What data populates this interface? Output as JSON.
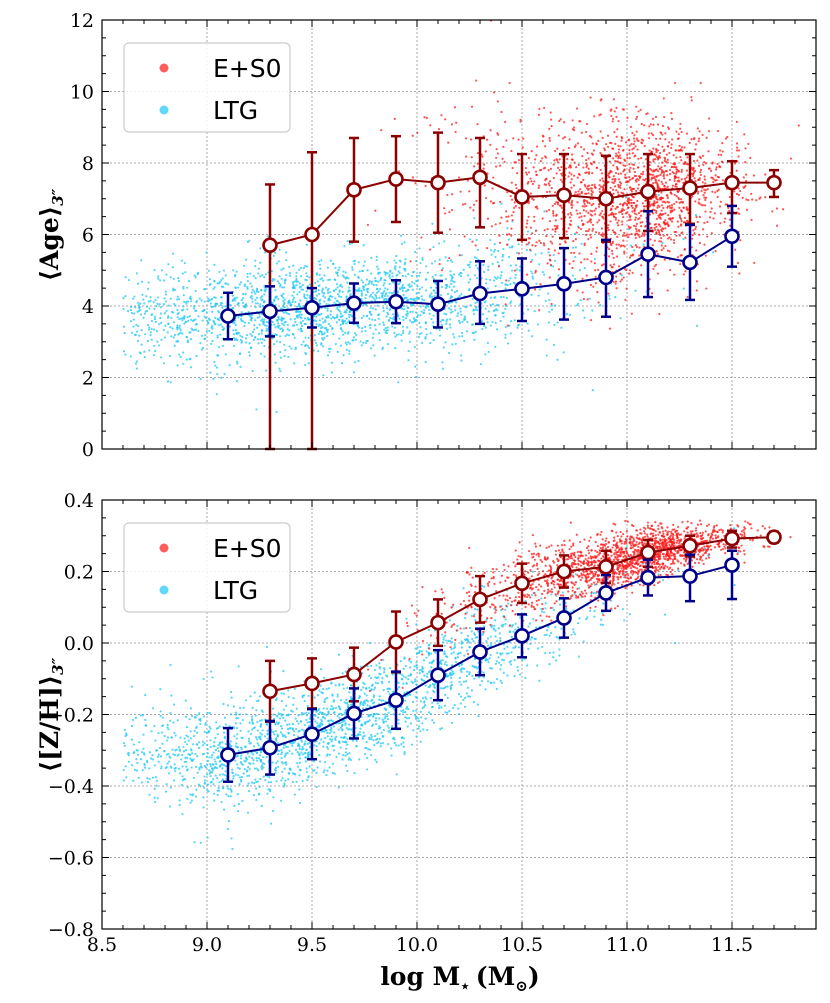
{
  "chart_data": [
    {
      "type": "scatter",
      "panel": "top",
      "ylabel": "⟨Age⟩",
      "ylabel_sub": "3″",
      "xlabel": "",
      "xlim": [
        8.5,
        11.9
      ],
      "ylim": [
        0,
        12
      ],
      "xticks": [
        "8.5",
        "9.0",
        "9.5",
        "10.0",
        "10.5",
        "11.0",
        "11.5"
      ],
      "xtick_values": [
        8.5,
        9.0,
        9.5,
        10.0,
        10.5,
        11.0,
        11.5
      ],
      "yticks": [
        "0",
        "2",
        "4",
        "6",
        "8",
        "10",
        "12"
      ],
      "ytick_values": [
        0,
        2,
        4,
        6,
        8,
        10,
        12
      ],
      "grid": true,
      "legend_position": "top-left",
      "series": [
        {
          "name": "E+S0",
          "color": "#8b0000",
          "scatter_color": "#ff1a1a",
          "x": [
            9.3,
            9.5,
            9.7,
            9.9,
            10.1,
            10.3,
            10.5,
            10.7,
            10.9,
            11.1,
            11.3,
            11.5,
            11.7
          ],
          "y": [
            5.7,
            6.0,
            7.25,
            7.55,
            7.45,
            7.6,
            7.05,
            7.1,
            7.0,
            7.2,
            7.3,
            7.45,
            7.45
          ],
          "err_low": [
            5.7,
            6.0,
            1.45,
            1.2,
            1.4,
            1.4,
            1.2,
            1.2,
            1.2,
            1.1,
            1.0,
            0.85,
            0.4
          ],
          "err_high": [
            1.7,
            2.3,
            1.45,
            1.2,
            1.4,
            1.1,
            1.2,
            1.15,
            1.2,
            1.05,
            0.95,
            0.6,
            0.35
          ]
        },
        {
          "name": "LTG",
          "color": "#00008b",
          "scatter_color": "#1ec8f5",
          "x": [
            9.1,
            9.3,
            9.5,
            9.7,
            9.9,
            10.1,
            10.3,
            10.5,
            10.7,
            10.9,
            11.1,
            11.3,
            11.5
          ],
          "y": [
            3.72,
            3.85,
            3.95,
            4.08,
            4.12,
            4.05,
            4.35,
            4.48,
            4.62,
            4.8,
            5.45,
            5.22,
            5.95
          ],
          "err_low": [
            0.65,
            0.7,
            0.55,
            0.55,
            0.6,
            0.65,
            0.85,
            0.9,
            1.0,
            1.1,
            1.2,
            1.05,
            0.85
          ],
          "err_high": [
            0.65,
            0.7,
            0.55,
            0.55,
            0.6,
            0.65,
            0.9,
            0.85,
            1.0,
            1.05,
            1.2,
            1.05,
            0.85
          ]
        }
      ]
    },
    {
      "type": "scatter",
      "panel": "bottom",
      "ylabel": "⟨[Z/H]⟩",
      "ylabel_sub": "3″",
      "xlabel": "log M",
      "xlabel_star": "⋆",
      "xlabel_unit": "(M",
      "xlabel_sun": "⊙",
      "xlabel_close": ")",
      "xlim": [
        8.5,
        11.9
      ],
      "ylim": [
        -0.8,
        0.4
      ],
      "xticks": [
        "8.5",
        "9.0",
        "9.5",
        "10.0",
        "10.5",
        "11.0",
        "11.5"
      ],
      "xtick_values": [
        8.5,
        9.0,
        9.5,
        10.0,
        10.5,
        11.0,
        11.5
      ],
      "yticks": [
        "−0.8",
        "−0.6",
        "−0.4",
        "−0.2",
        "0.0",
        "0.2",
        "0.4"
      ],
      "ytick_values": [
        -0.8,
        -0.6,
        -0.4,
        -0.2,
        0.0,
        0.2,
        0.4
      ],
      "grid": true,
      "legend_position": "top-left",
      "series": [
        {
          "name": "E+S0",
          "color": "#8b0000",
          "scatter_color": "#ff1a1a",
          "x": [
            9.3,
            9.5,
            9.7,
            9.9,
            10.1,
            10.3,
            10.5,
            10.7,
            10.9,
            11.1,
            11.3,
            11.5,
            11.7
          ],
          "y": [
            -0.135,
            -0.113,
            -0.088,
            0.003,
            0.057,
            0.122,
            0.167,
            0.2,
            0.213,
            0.253,
            0.272,
            0.292,
            0.296
          ],
          "err_low": [
            0.085,
            0.07,
            0.075,
            0.085,
            0.065,
            0.065,
            0.055,
            0.045,
            0.045,
            0.04,
            0.03,
            0.025,
            0.015
          ],
          "err_high": [
            0.085,
            0.07,
            0.075,
            0.085,
            0.065,
            0.065,
            0.055,
            0.045,
            0.045,
            0.035,
            0.028,
            0.022,
            0.015
          ]
        },
        {
          "name": "LTG",
          "color": "#00008b",
          "scatter_color": "#1ec8f5",
          "x": [
            9.1,
            9.3,
            9.5,
            9.7,
            9.9,
            10.1,
            10.3,
            10.5,
            10.7,
            10.9,
            11.1,
            11.3,
            11.5
          ],
          "y": [
            -0.313,
            -0.293,
            -0.255,
            -0.197,
            -0.16,
            -0.09,
            -0.025,
            0.02,
            0.07,
            0.14,
            0.183,
            0.187,
            0.218
          ],
          "err_low": [
            0.075,
            0.075,
            0.07,
            0.07,
            0.08,
            0.07,
            0.065,
            0.06,
            0.055,
            0.05,
            0.05,
            0.07,
            0.095
          ],
          "err_high": [
            0.075,
            0.075,
            0.07,
            0.07,
            0.08,
            0.07,
            0.065,
            0.06,
            0.055,
            0.05,
            0.05,
            0.06,
            0.04
          ]
        }
      ]
    }
  ]
}
